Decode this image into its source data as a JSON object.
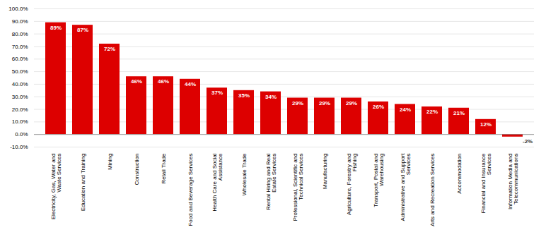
{
  "chart_data": {
    "type": "bar",
    "categories": [
      "Electricity, Gas, Water and\nWaste Services",
      "Education and Training",
      "Mining",
      "Construction",
      "Retail Trade",
      "Food and Beverage Services",
      "Health Care and Social\nAssistance",
      "Wholesale Trade",
      "Rental Hiring and Real\nEstate Services",
      "Professional, Scientific and\nTechnical Services",
      "Manufacturing",
      "Agriculture, Forestry and\nFishing",
      "Transport, Postal and\nWarehousing",
      "Administrative and Support\nServices",
      "Arts and Recreation Services",
      "Accommodation",
      "Financial and Insurance\nServices",
      "Information Media and\nTelecommunications"
    ],
    "values": [
      89,
      87,
      72,
      46,
      46,
      44,
      37,
      35,
      34,
      29,
      29,
      29,
      26,
      24,
      22,
      21,
      12,
      -2
    ],
    "value_labels": [
      "89%",
      "87%",
      "72%",
      "46%",
      "46%",
      "44%",
      "37%",
      "35%",
      "34%",
      "29%",
      "29%",
      "29%",
      "26%",
      "24%",
      "22%",
      "21%",
      "12%",
      "-2%"
    ],
    "data_labels": true,
    "color": "#dd0000",
    "ylim": [
      -10,
      100
    ],
    "yticks": [
      {
        "value": -10,
        "label": "-10.0%"
      },
      {
        "value": 0,
        "label": "0.0%"
      },
      {
        "value": 10,
        "label": "10.0%"
      },
      {
        "value": 20,
        "label": "20.0%"
      },
      {
        "value": 30,
        "label": "30.0%"
      },
      {
        "value": 40,
        "label": "40.0%"
      },
      {
        "value": 50,
        "label": "50.0%"
      },
      {
        "value": 60,
        "label": "60.0%"
      },
      {
        "value": 70,
        "label": "70.0%"
      },
      {
        "value": 80,
        "label": "80.0%"
      },
      {
        "value": 90,
        "label": "90.0%"
      },
      {
        "value": 100,
        "label": "100.0%"
      }
    ],
    "grid": true
  }
}
